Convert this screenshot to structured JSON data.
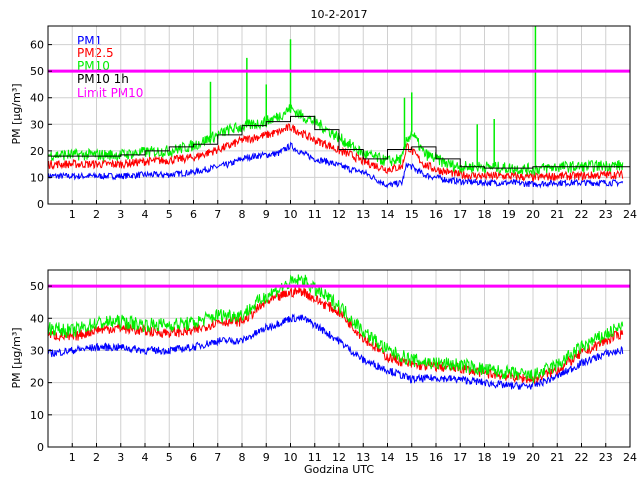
{
  "chart_data": [
    {
      "type": "line",
      "title": "10-2-2017",
      "xlabel": "",
      "ylabel": "PM [µg/m³]",
      "xlim": [
        0,
        24
      ],
      "ylim": [
        0,
        67
      ],
      "xticks": [
        1,
        2,
        3,
        4,
        5,
        6,
        7,
        8,
        9,
        10,
        11,
        12,
        13,
        14,
        15,
        16,
        17,
        18,
        19,
        20,
        21,
        22,
        23,
        24
      ],
      "yticks": [
        0,
        10,
        20,
        30,
        40,
        50,
        60
      ],
      "grid": true,
      "legend_position": "top-left",
      "limit_value": 50,
      "series": [
        {
          "name": "PM1",
          "color": "#0000ff",
          "step": false,
          "x": [
            0,
            1,
            2,
            3,
            4,
            5,
            6,
            6.5,
            7,
            7.5,
            8,
            8.5,
            9,
            9.5,
            10,
            10.5,
            11,
            11.5,
            12,
            12.5,
            13,
            14,
            14.6,
            14.8,
            15,
            15.5,
            16,
            16.5,
            17,
            18,
            19,
            20,
            21,
            22,
            23,
            23.7
          ],
          "values": [
            10.5,
            10.5,
            10.5,
            10.5,
            11,
            11,
            12,
            13,
            14,
            15,
            17,
            18,
            18.5,
            19,
            22,
            19,
            17,
            16,
            14.5,
            13,
            12,
            7,
            8,
            15,
            14,
            11,
            10,
            9,
            8.5,
            8,
            8,
            7.5,
            8,
            8,
            8,
            8
          ]
        },
        {
          "name": "PM2.5",
          "color": "#ff0000",
          "step": false,
          "x": [
            0,
            1,
            2,
            3,
            4,
            5,
            6,
            6.5,
            7,
            7.5,
            8,
            8.5,
            9,
            9.5,
            10,
            10.5,
            11,
            11.5,
            12,
            12.5,
            13,
            14,
            14.6,
            14.8,
            15,
            15.5,
            16,
            16.5,
            17,
            18,
            19,
            20,
            21,
            22,
            23,
            23.7
          ],
          "values": [
            15,
            15,
            15,
            15,
            16,
            16.5,
            17.5,
            19,
            20.5,
            22,
            24,
            25,
            26,
            27,
            29,
            26.5,
            24,
            22.5,
            20,
            18.5,
            16,
            13,
            14,
            22,
            20,
            15,
            13,
            12,
            11,
            10.5,
            10.5,
            10,
            10.5,
            10.5,
            11,
            11
          ]
        },
        {
          "name": "PM10",
          "color": "#00ee00",
          "step": false,
          "x": [
            0,
            1,
            2,
            3,
            4,
            5,
            6,
            6.5,
            7,
            7.5,
            8,
            8.5,
            9,
            9.5,
            10,
            10.5,
            11,
            11.5,
            12,
            12.5,
            13,
            14,
            14.6,
            14.8,
            15,
            15.5,
            16,
            16.5,
            17,
            18,
            19,
            20,
            21,
            22,
            23,
            23.7
          ],
          "values": [
            18.5,
            18.5,
            18.5,
            18.5,
            19.5,
            20,
            22,
            24,
            26,
            28,
            29,
            30,
            31,
            33,
            36,
            33,
            31,
            28,
            25,
            22,
            19,
            16,
            17,
            24,
            27,
            19,
            17,
            15,
            14,
            14,
            13.5,
            13,
            14,
            14,
            14.5,
            14.5
          ]
        },
        {
          "name": "PM10 1h",
          "color": "#000000",
          "step": true,
          "x": [
            0,
            1,
            2,
            3,
            4,
            5,
            6,
            7,
            8,
            9,
            10,
            11,
            12,
            13,
            14,
            15,
            16,
            17,
            18,
            19,
            20,
            21,
            22,
            23,
            24
          ],
          "values": [
            18,
            18,
            18,
            18.5,
            20,
            21.5,
            22.5,
            26,
            29.5,
            31,
            33,
            28,
            20.5,
            17,
            20.5,
            21.5,
            17,
            14,
            13.5,
            13.5,
            14,
            14,
            14,
            14,
            14
          ]
        },
        {
          "name": "Limit PM10",
          "color": "#ff00ff",
          "step": false,
          "x": [
            0,
            24
          ],
          "values": [
            50,
            50
          ]
        }
      ],
      "spikes": [
        {
          "x": 6.7,
          "y": 46
        },
        {
          "x": 8.2,
          "y": 55
        },
        {
          "x": 9.0,
          "y": 45
        },
        {
          "x": 10.0,
          "y": 62
        },
        {
          "x": 14.7,
          "y": 40
        },
        {
          "x": 15.0,
          "y": 42
        },
        {
          "x": 17.7,
          "y": 30
        },
        {
          "x": 18.4,
          "y": 32
        },
        {
          "x": 20.1,
          "y": 67
        }
      ]
    },
    {
      "type": "line",
      "title": "",
      "xlabel": "Godzina UTC",
      "ylabel": "PM [µg/m³]",
      "xlim": [
        0,
        24
      ],
      "ylim": [
        0,
        55
      ],
      "xticks": [
        1,
        2,
        3,
        4,
        5,
        6,
        7,
        8,
        9,
        10,
        11,
        12,
        13,
        14,
        15,
        16,
        17,
        18,
        19,
        20,
        21,
        22,
        23,
        24
      ],
      "yticks": [
        0,
        10,
        20,
        30,
        40,
        50
      ],
      "grid": true,
      "limit_value": 50,
      "series": [
        {
          "name": "PM1",
          "color": "#0000ff",
          "x": [
            0,
            1,
            2,
            3,
            4,
            5,
            6,
            7,
            8,
            9,
            10,
            10.5,
            11,
            12,
            13,
            14,
            15,
            16,
            17,
            18,
            19,
            20,
            21,
            22,
            23,
            23.7
          ],
          "values": [
            29,
            30,
            31,
            31,
            30,
            30,
            31,
            33,
            33,
            37,
            40,
            40,
            38,
            33,
            27,
            24,
            21,
            21.5,
            21,
            20,
            19,
            19,
            22,
            26,
            29,
            30
          ]
        },
        {
          "name": "PM2.5",
          "color": "#ff0000",
          "x": [
            0,
            1,
            2,
            3,
            4,
            5,
            6,
            7,
            8,
            9,
            10,
            10.5,
            11,
            12,
            13,
            14,
            15,
            16,
            17,
            18,
            19,
            20,
            21,
            22,
            23,
            23.7
          ],
          "values": [
            35,
            34,
            36.5,
            37,
            36,
            35.5,
            36,
            39,
            39,
            45,
            48,
            48.5,
            46,
            42,
            34,
            28,
            25.5,
            25,
            24.5,
            23,
            22,
            21,
            24,
            29,
            33,
            35.5
          ]
        },
        {
          "name": "PM10",
          "color": "#00ee00",
          "x": [
            0,
            1,
            2,
            3,
            4,
            5,
            6,
            7,
            8,
            9,
            10,
            10.5,
            11,
            12,
            13,
            14,
            15,
            16,
            17,
            18,
            19,
            20,
            21,
            22,
            23,
            23.7
          ],
          "values": [
            37,
            36,
            38.5,
            39,
            38,
            38,
            38.5,
            41,
            41,
            47,
            51,
            52,
            49,
            44,
            36,
            30,
            27,
            26,
            25.5,
            24,
            23,
            22,
            25.5,
            31,
            35,
            37.5
          ]
        },
        {
          "name": "Limit PM10",
          "color": "#ff00ff",
          "x": [
            0,
            24
          ],
          "values": [
            50,
            50
          ]
        }
      ]
    }
  ]
}
